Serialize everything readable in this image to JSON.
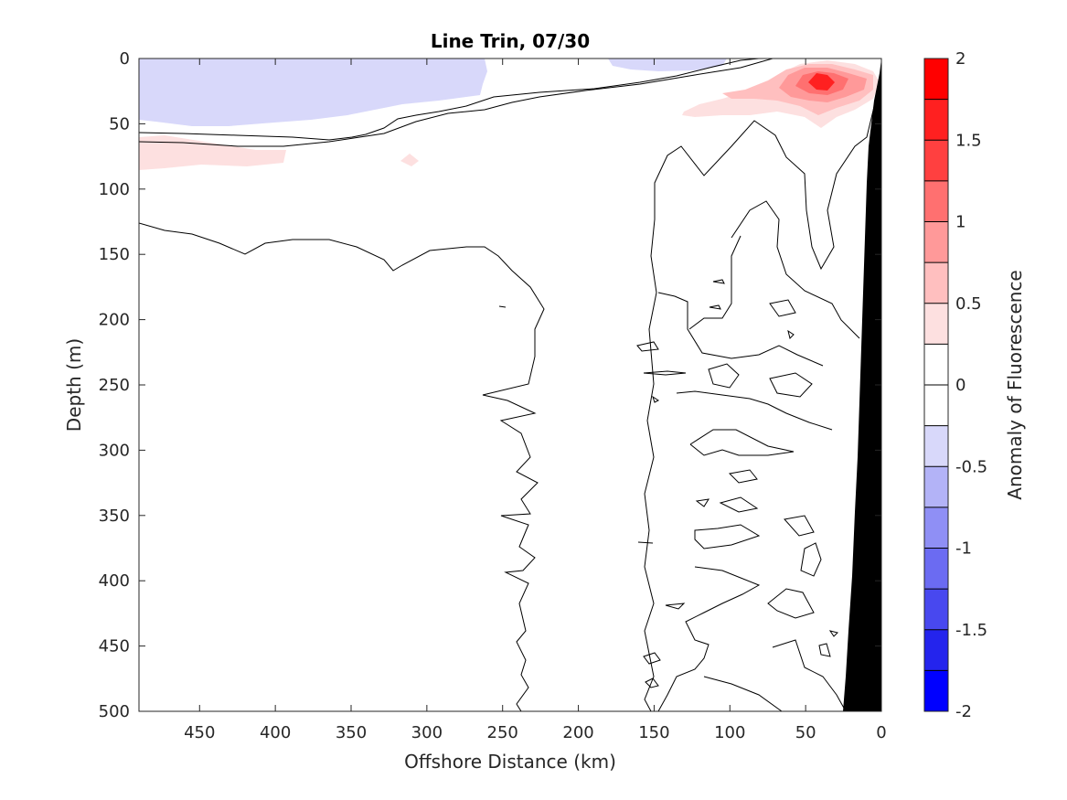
{
  "chart_data": {
    "type": "contour",
    "title": "Line Trin, 07/30",
    "xlabel": "Offshore Distance (km)",
    "ylabel": "Depth (m)",
    "colorbar_label": "Anomaly of Fluorescence",
    "x_axis_reversed": true,
    "y_axis_reversed": true,
    "xlim": [
      490,
      0
    ],
    "ylim": [
      0,
      500
    ],
    "clim": [
      -2,
      2
    ],
    "x_ticks": [
      450,
      400,
      350,
      300,
      250,
      200,
      150,
      100,
      50,
      0
    ],
    "y_ticks": [
      0,
      50,
      100,
      150,
      200,
      250,
      300,
      350,
      400,
      450,
      500
    ],
    "colorbar_ticks": [
      2,
      1.5,
      1,
      0.5,
      0,
      -0.5,
      -1,
      -1.5,
      -2
    ],
    "contour_levels": [
      -2,
      -1.75,
      -1.5,
      -1.25,
      -1,
      -0.75,
      -0.5,
      -0.25,
      0,
      0.25,
      0.5,
      0.75,
      1,
      1.25,
      1.5,
      1.75,
      2
    ],
    "colorbar_colors": [
      "#ff0000",
      "#ff2020",
      "#ff4040",
      "#ff7070",
      "#ff9999",
      "#ffbfbf",
      "#fde0e0",
      "#ffffff",
      "#ffffff",
      "#d8d8fa",
      "#b3b3f7",
      "#8f8ff5",
      "#6b6bf2",
      "#4848ef",
      "#2424ed",
      "#0000ff"
    ],
    "features": [
      {
        "name": "negative-anomaly-near-surface",
        "level": -0.25,
        "depth_range_m": [
          0,
          50
        ],
        "x_range_km": [
          490,
          300
        ]
      },
      {
        "name": "positive-anomaly-subsurface",
        "level": 0.25,
        "depth_range_m": [
          60,
          85
        ],
        "x_range_km": [
          490,
          390
        ]
      },
      {
        "name": "peak-positive-anomaly",
        "level": 1.75,
        "x_km": 40,
        "depth_m": 20
      },
      {
        "name": "bathymetry",
        "fill": "#000000",
        "x_range_km": [
          25,
          0
        ]
      }
    ]
  }
}
